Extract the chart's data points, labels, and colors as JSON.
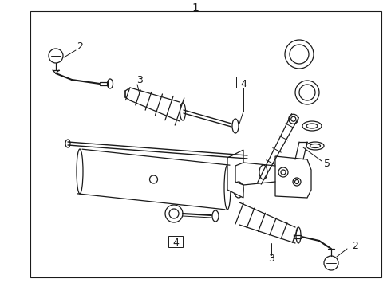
{
  "bg_color": "#ffffff",
  "line_color": "#1a1a1a",
  "border_color": "#000000",
  "label_color": "#000000",
  "fig_width": 4.9,
  "fig_height": 3.6,
  "dpi": 100
}
